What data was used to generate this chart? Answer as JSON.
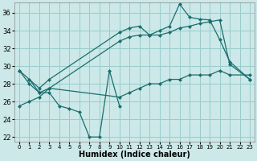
{
  "xlabel": "Humidex (Indice chaleur)",
  "bg_color": "#cce8e8",
  "grid_color": "#99cccc",
  "line_color": "#1a6e6e",
  "xlim": [
    -0.5,
    23.5
  ],
  "ylim": [
    21.5,
    37.2
  ],
  "xticks": [
    0,
    1,
    2,
    3,
    4,
    5,
    6,
    7,
    8,
    9,
    10,
    11,
    12,
    13,
    14,
    15,
    16,
    17,
    18,
    19,
    20,
    21,
    22,
    23
  ],
  "yticks": [
    22,
    24,
    26,
    28,
    30,
    32,
    34,
    36
  ],
  "line_upper_x": [
    0,
    1,
    2,
    3,
    10,
    11,
    12,
    13,
    14,
    15,
    16,
    17,
    18,
    19,
    20,
    21,
    23
  ],
  "line_upper_y": [
    29.5,
    28.5,
    27.5,
    28.5,
    33.8,
    34.3,
    34.5,
    33.5,
    34.0,
    34.5,
    37.0,
    35.5,
    35.3,
    35.2,
    33.0,
    30.5,
    28.5
  ],
  "line_mid_x": [
    0,
    1,
    2,
    3,
    10,
    11,
    12,
    13,
    14,
    15,
    16,
    17,
    18,
    19,
    20,
    21,
    23
  ],
  "line_mid_y": [
    29.5,
    28.0,
    27.0,
    27.5,
    32.8,
    33.3,
    33.5,
    33.5,
    33.5,
    33.8,
    34.3,
    34.5,
    34.8,
    35.0,
    35.2,
    30.2,
    28.5
  ],
  "line_lower_x": [
    0,
    1,
    2,
    3,
    10,
    11,
    12,
    13,
    14,
    15,
    16,
    17,
    18,
    19,
    20,
    21,
    23
  ],
  "line_lower_y": [
    25.5,
    26.0,
    26.5,
    27.5,
    26.5,
    27.0,
    27.5,
    28.0,
    28.0,
    28.5,
    28.5,
    29.0,
    29.0,
    29.0,
    29.5,
    29.0,
    29.0
  ],
  "line_jagged_x": [
    1,
    2,
    3,
    4,
    5,
    6,
    7,
    8,
    9,
    10
  ],
  "line_jagged_y": [
    28.5,
    27.0,
    27.0,
    25.5,
    25.2,
    24.8,
    22.0,
    22.0,
    29.5,
    25.5
  ]
}
